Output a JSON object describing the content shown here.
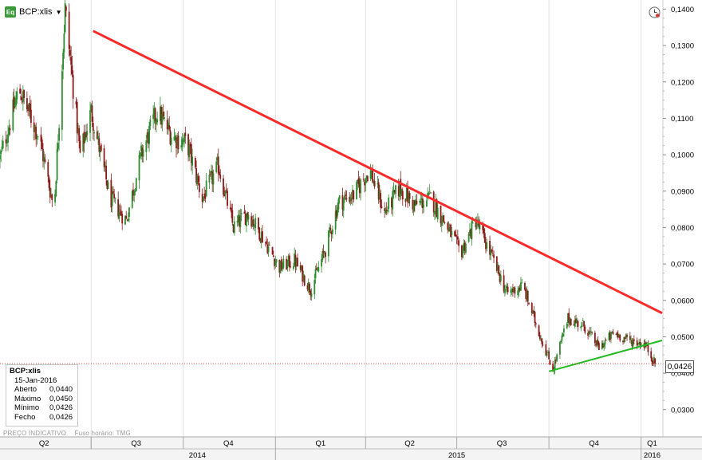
{
  "header": {
    "icon_label": "Eq",
    "ticker": "BCP:xlis",
    "dropdown_icon": "triangle-down-icon",
    "clock_icon": "clock-icon"
  },
  "info_box": {
    "title": "BCP:xlis",
    "date": "15-Jan-2016",
    "rows": [
      {
        "label": "Aberto",
        "value": "0,0440"
      },
      {
        "label": "Máximo",
        "value": "0,0450"
      },
      {
        "label": "Mínimo",
        "value": "0,0426"
      },
      {
        "label": "Fecho",
        "value": "0,0426"
      }
    ]
  },
  "footer": {
    "note1": "PREÇO INDICATIVO",
    "note2": "Fuso horário: TMG"
  },
  "last_price": "0,0426",
  "colors": {
    "up": "#2e8b2e",
    "down": "#8b1a1a",
    "resistance": "#ff2a2a",
    "support": "#22bb22",
    "last_line": "#e04040"
  },
  "chart_data": {
    "type": "candlestick",
    "symbol": "BCP:xlis",
    "x_range": [
      "2014-04-01",
      "2016-01-22"
    ],
    "ylim": [
      0.0225,
      0.1425
    ],
    "y_ticks": [
      "0,0300",
      "0,0400",
      "0,0500",
      "0,0600",
      "0,0700",
      "0,0800",
      "0,0900",
      "0,1000",
      "0,1100",
      "0,1200",
      "0,1300",
      "0,1400"
    ],
    "y_tick_values": [
      0.03,
      0.04,
      0.05,
      0.06,
      0.07,
      0.08,
      0.09,
      0.1,
      0.11,
      0.12,
      0.13,
      0.14
    ],
    "quarter_labels": [
      "Q2",
      "Q3",
      "Q4",
      "Q1",
      "Q2",
      "Q3",
      "Q4",
      "Q1"
    ],
    "quarter_label_dates": [
      "2014-05-15",
      "2014-08-15",
      "2014-11-15",
      "2015-02-15",
      "2015-05-15",
      "2015-08-15",
      "2015-11-15",
      "2016-01-12"
    ],
    "quarter_separators": [
      "2014-07-01",
      "2014-10-01",
      "2015-01-01",
      "2015-04-01",
      "2015-07-01",
      "2015-10-01",
      "2016-01-01"
    ],
    "year_labels": [
      "2014",
      "2015",
      "2016"
    ],
    "year_label_dates": [
      "2014-10-15",
      "2015-07-01",
      "2016-01-12"
    ],
    "year_separators": [
      "2015-01-01",
      "2016-01-01"
    ],
    "close_series": [
      [
        "2014-04-01",
        0.099
      ],
      [
        "2014-04-20",
        0.118
      ],
      [
        "2014-05-10",
        0.105
      ],
      [
        "2014-05-25",
        0.085
      ],
      [
        "2014-06-05",
        0.14
      ],
      [
        "2014-06-20",
        0.1
      ],
      [
        "2014-07-01",
        0.112
      ],
      [
        "2014-07-20",
        0.088
      ],
      [
        "2014-08-05",
        0.082
      ],
      [
        "2014-08-20",
        0.1
      ],
      [
        "2014-09-05",
        0.112
      ],
      [
        "2014-09-20",
        0.105
      ],
      [
        "2014-10-05",
        0.103
      ],
      [
        "2014-10-20",
        0.088
      ],
      [
        "2014-11-05",
        0.097
      ],
      [
        "2014-11-20",
        0.08
      ],
      [
        "2014-12-05",
        0.084
      ],
      [
        "2014-12-20",
        0.077
      ],
      [
        "2015-01-05",
        0.069
      ],
      [
        "2015-01-20",
        0.071
      ],
      [
        "2015-02-05",
        0.063
      ],
      [
        "2015-02-20",
        0.074
      ],
      [
        "2015-03-05",
        0.087
      ],
      [
        "2015-03-20",
        0.089
      ],
      [
        "2015-04-05",
        0.096
      ],
      [
        "2015-04-20",
        0.084
      ],
      [
        "2015-05-05",
        0.091
      ],
      [
        "2015-05-20",
        0.086
      ],
      [
        "2015-06-05",
        0.088
      ],
      [
        "2015-06-20",
        0.081
      ],
      [
        "2015-07-05",
        0.073
      ],
      [
        "2015-07-20",
        0.082
      ],
      [
        "2015-08-05",
        0.072
      ],
      [
        "2015-08-20",
        0.062
      ],
      [
        "2015-09-05",
        0.064
      ],
      [
        "2015-09-20",
        0.052
      ],
      [
        "2015-10-05",
        0.041
      ],
      [
        "2015-10-20",
        0.055
      ],
      [
        "2015-11-05",
        0.053
      ],
      [
        "2015-11-20",
        0.047
      ],
      [
        "2015-12-05",
        0.051
      ],
      [
        "2015-12-20",
        0.049
      ],
      [
        "2016-01-05",
        0.048
      ],
      [
        "2016-01-15",
        0.0426
      ]
    ],
    "trendlines": [
      {
        "name": "resistance",
        "from": [
          "2014-07-03",
          0.134
        ],
        "to": [
          "2016-01-22",
          0.0565
        ]
      },
      {
        "name": "support",
        "from": [
          "2015-10-01",
          0.0405
        ],
        "to": [
          "2016-01-22",
          0.049
        ]
      }
    ],
    "last_value": 0.0426
  }
}
